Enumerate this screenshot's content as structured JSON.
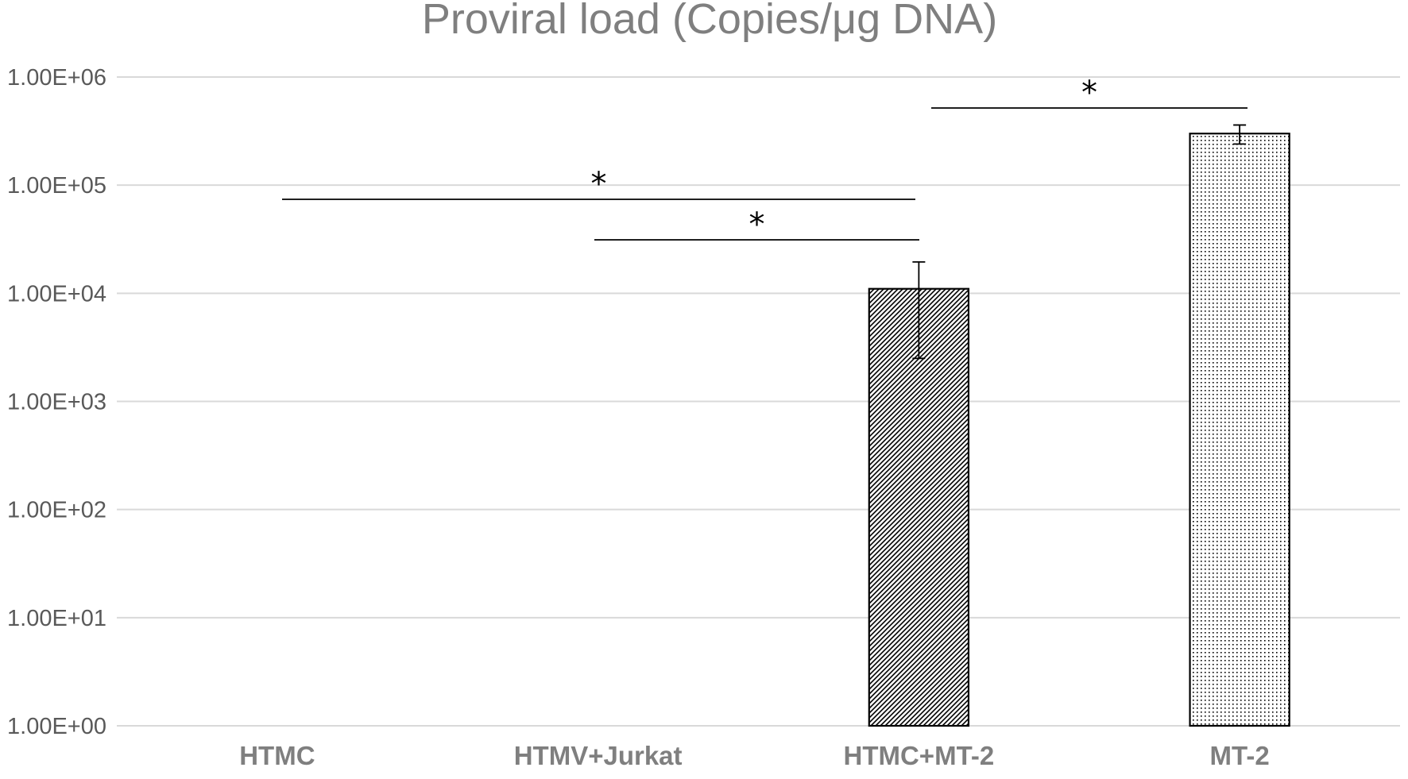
{
  "chart_data": {
    "type": "bar",
    "title": "Proviral load (Copies/μg DNA)",
    "xlabel": "",
    "ylabel": "",
    "yscale": "log",
    "ylim": [
      1,
      1000000
    ],
    "grid": true,
    "legend": "none",
    "categories": [
      "HTMC",
      "HTMV+Jurkat",
      "HTMC+MT-2",
      "MT-2"
    ],
    "values": [
      null,
      null,
      11000,
      300000
    ],
    "error_bars": [
      null,
      null,
      [
        2500,
        19500
      ],
      [
        240000,
        360000
      ]
    ],
    "patterns": [
      "none",
      "none",
      "diagonal-hatch",
      "dots"
    ],
    "ytick_labels": [
      "1.00E+00",
      "1.00E+01",
      "1.00E+02",
      "1.00E+03",
      "1.00E+04",
      "1.00E+05",
      "1.00E+06"
    ],
    "ytick_values": [
      1,
      10,
      100,
      1000,
      10000,
      100000,
      1000000
    ],
    "significance": [
      {
        "from": "HTMC",
        "to": "HTMC+MT-2",
        "label": "*"
      },
      {
        "from": "HTMV+Jurkat",
        "to": "HTMC+MT-2",
        "label": "*"
      },
      {
        "from": "HTMC+MT-2",
        "to": "MT-2",
        "label": "*"
      }
    ],
    "colors": {
      "bar_edge": "#000000",
      "grid": "#d9d9d9",
      "text": "#7f7f7f"
    }
  }
}
